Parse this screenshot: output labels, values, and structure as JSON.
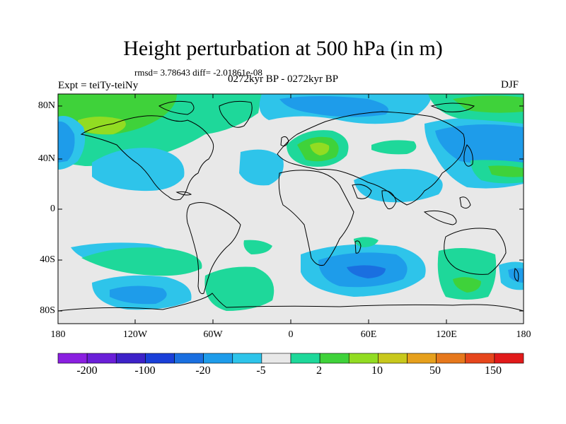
{
  "title": "Height perturbation at 500 hPa (in m)",
  "rmsd_line": "rmsd= 3.78643 diff= -2.01861e-08",
  "subtitle": "0272kyr BP - 0272kyr BP",
  "experiment": "Expt = teiTy-teiNy",
  "season": "DJF",
  "map": {
    "lat_labels": [
      "80N",
      "40N",
      "0",
      "40S",
      "80S"
    ],
    "lon_labels": [
      "180",
      "120W",
      "60W",
      "0",
      "60E",
      "120E",
      "180"
    ]
  },
  "colorbar": {
    "colors": [
      "#8a1fe0",
      "#6a1fd8",
      "#3d22c8",
      "#1a3fd8",
      "#1a6fe0",
      "#1e9cea",
      "#2ec4ea",
      "#e8e8e8",
      "#1ed89a",
      "#3fd23a",
      "#92dc22",
      "#c8c81c",
      "#e6a01c",
      "#e6781c",
      "#e6461c",
      "#e11a1a"
    ],
    "labels": [
      "-200",
      "-100",
      "-20",
      "-5",
      "2",
      "10",
      "50",
      "150"
    ]
  },
  "colors": {
    "neutral": "#e8e8e8",
    "light_blue": "#2ec4ea",
    "mid_blue": "#1e9cea",
    "blue": "#1a6fe0",
    "green": "#1ed89a",
    "bright_green": "#3fd23a",
    "yellow_green": "#92dc22"
  }
}
